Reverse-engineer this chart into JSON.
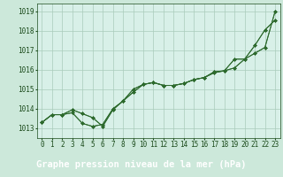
{
  "title": "Graphe pression niveau de la mer (hPa)",
  "xlabel_hours": [
    0,
    1,
    2,
    3,
    4,
    5,
    6,
    7,
    8,
    9,
    10,
    11,
    12,
    13,
    14,
    15,
    16,
    17,
    18,
    19,
    20,
    21,
    22,
    23
  ],
  "series": [
    [
      1013.3,
      1013.7,
      1013.7,
      1013.8,
      1013.25,
      1013.1,
      1013.2,
      1014.0,
      1014.4,
      1014.85,
      1015.25,
      1015.35,
      1015.2,
      1015.2,
      1015.3,
      1015.5,
      1015.6,
      1015.9,
      1015.95,
      1016.55,
      1016.55,
      1017.25,
      1018.05,
      1018.55
    ],
    [
      1013.3,
      1013.7,
      1013.7,
      1013.8,
      1013.25,
      1013.1,
      1013.2,
      1014.0,
      1014.4,
      1014.85,
      1015.25,
      1015.35,
      1015.2,
      1015.2,
      1015.3,
      1015.5,
      1015.6,
      1015.9,
      1015.95,
      1016.55,
      1016.55,
      1017.25,
      1018.05,
      1018.55
    ],
    [
      1013.3,
      1013.7,
      1013.7,
      1013.95,
      1013.75,
      1013.55,
      1013.1,
      1013.95,
      1014.4,
      1015.0,
      1015.25,
      1015.35,
      1015.2,
      1015.2,
      1015.3,
      1015.5,
      1015.6,
      1015.85,
      1015.95,
      1016.1,
      1016.55,
      1016.85,
      1017.15,
      1019.0
    ],
    [
      1013.3,
      1013.7,
      1013.7,
      1013.95,
      1013.75,
      1013.55,
      1013.1,
      1013.95,
      1014.4,
      1015.0,
      1015.25,
      1015.35,
      1015.2,
      1015.2,
      1015.3,
      1015.5,
      1015.6,
      1015.85,
      1015.95,
      1016.1,
      1016.55,
      1016.85,
      1017.15,
      1019.0
    ]
  ],
  "line_color": "#2d6a2d",
  "marker": "D",
  "markersize": 2.0,
  "bg_color": "#cce8da",
  "grid_color": "#aaccbb",
  "plot_bg": "#d8f0e8",
  "ylim": [
    1012.5,
    1019.4
  ],
  "yticks": [
    1013,
    1014,
    1015,
    1016,
    1017,
    1018,
    1019
  ],
  "title_bg": "#2d6a2d",
  "title_fg": "#ffffff",
  "title_fontsize": 7.5,
  "tick_fontsize": 5.5
}
